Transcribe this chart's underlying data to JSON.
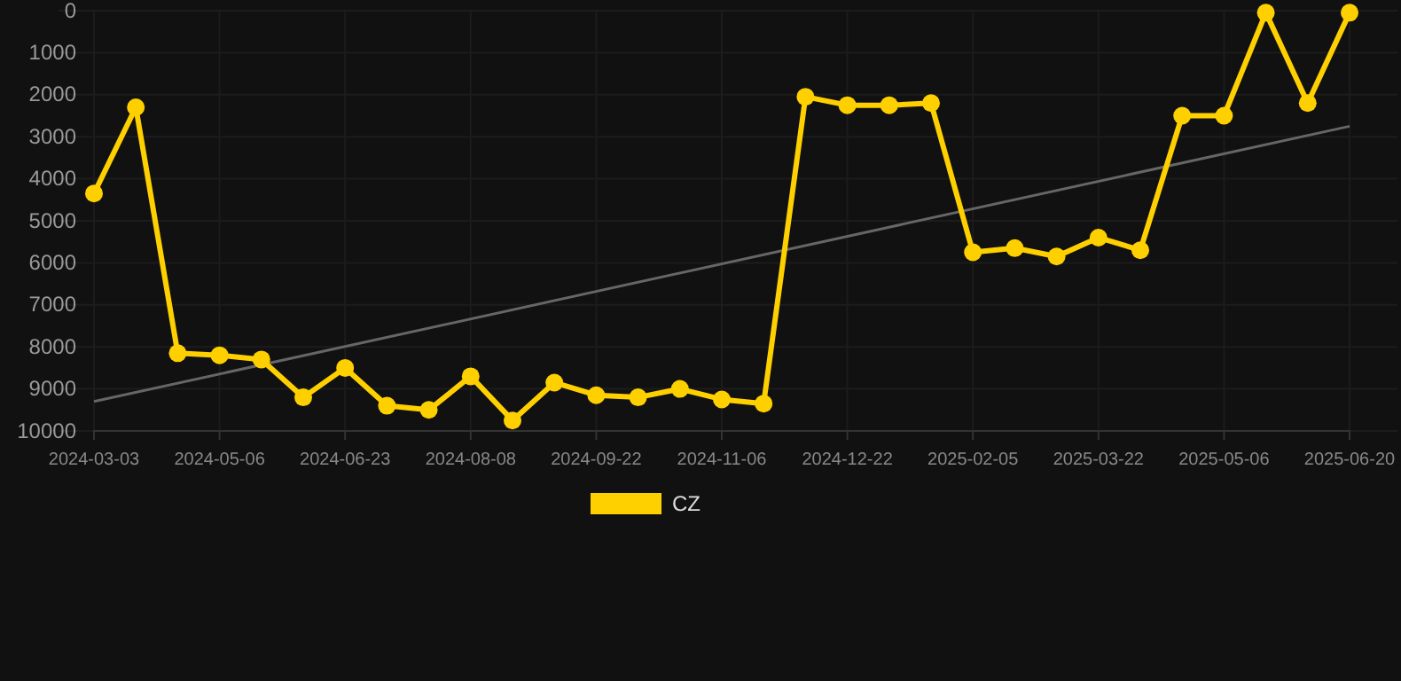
{
  "chart_data": {
    "type": "line",
    "categories": [
      "2024-03-03",
      null,
      null,
      "2024-05-06",
      null,
      null,
      "2024-06-23",
      null,
      null,
      "2024-08-08",
      null,
      null,
      "2024-09-22",
      null,
      null,
      "2024-11-06",
      null,
      null,
      "2024-12-22",
      null,
      null,
      "2025-02-05",
      null,
      null,
      "2025-03-22",
      null,
      null,
      "2025-05-06",
      null,
      null,
      "2025-06-20"
    ],
    "series": [
      {
        "name": "CZ",
        "color": "#ffd000",
        "marker": "circle",
        "values": [
          4350,
          2300,
          8150,
          8200,
          8300,
          9200,
          8500,
          9400,
          9500,
          8700,
          9750,
          8850,
          9150,
          9200,
          9000,
          9250,
          9350,
          2050,
          2250,
          2250,
          2200,
          5750,
          5650,
          5850,
          5400,
          5700,
          2500,
          2500,
          50,
          2200,
          50
        ]
      },
      {
        "type": "line",
        "color": "#666666",
        "marker": "none",
        "values": [
          9300,
          null,
          null,
          null,
          null,
          null,
          null,
          null,
          null,
          null,
          null,
          null,
          null,
          null,
          null,
          null,
          null,
          null,
          null,
          null,
          null,
          null,
          null,
          null,
          null,
          null,
          null,
          null,
          null,
          null,
          2750
        ]
      }
    ],
    "ylim": [
      10000,
      0
    ],
    "yticks": [
      0,
      1000,
      2000,
      3000,
      4000,
      5000,
      6000,
      7000,
      8000,
      9000,
      10000
    ],
    "grid": true,
    "legend": "bottom"
  }
}
